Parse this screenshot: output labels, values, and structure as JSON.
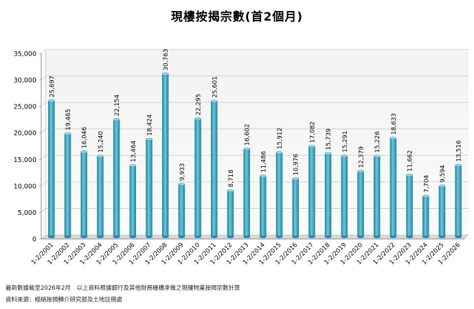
{
  "chart_data": {
    "type": "bar",
    "title": "現樓按揭宗數(首2個月)",
    "xlabel": "",
    "ylabel": "",
    "ylim": [
      0,
      35000
    ],
    "yticks": [
      0,
      5000,
      10000,
      15000,
      20000,
      25000,
      30000,
      35000
    ],
    "ytick_labels": [
      "0",
      "5,000",
      "10,000",
      "15,000",
      "20,000",
      "25,000",
      "30,000",
      "35,000"
    ],
    "categories": [
      "1-2/2001",
      "1-2/2002",
      "1-2/2003",
      "1-2/2004",
      "1-2/2005",
      "1-2/2006",
      "1-2/2007",
      "1-2/2008",
      "1-2/2009",
      "1-2/2010",
      "1-2/2011",
      "1-2/2012",
      "1-2/2013",
      "1-2/2014",
      "1-2/2015",
      "1-2/2016",
      "1-2/2017",
      "1-2/2018",
      "1-2/2019",
      "1-2/2020",
      "1-2/2021",
      "1-2/2022",
      "1-2/2023",
      "1-2/2024",
      "1-2/2025",
      "1-2/2026"
    ],
    "values": [
      25697,
      19465,
      16046,
      15240,
      22154,
      13464,
      18424,
      30763,
      9933,
      22295,
      25601,
      8718,
      16602,
      11486,
      15912,
      10976,
      17082,
      15739,
      15291,
      12379,
      15226,
      18633,
      11662,
      7704,
      9594,
      13516
    ],
    "value_labels": [
      "25,697",
      "19,465",
      "16,046",
      "15,240",
      "22,154",
      "13,464",
      "18,424",
      "30,763",
      "9,933",
      "22,295",
      "25,601",
      "8,718",
      "16,602",
      "11,486",
      "15,912",
      "10,976",
      "17,082",
      "15,739",
      "15,291",
      "12,379",
      "15,226",
      "18,633",
      "11,662",
      "7,704",
      "9,594",
      "13,516"
    ],
    "grid": true,
    "bar_color": "#3aa6bf"
  },
  "notes": {
    "line1": "最新數據截至2026年2月　以上資料根據銀行及其他財務機構承做之現樓物業按揭宗數計算",
    "line2": "資料來源：經絡按揭轉介研究部及土地註冊處"
  }
}
